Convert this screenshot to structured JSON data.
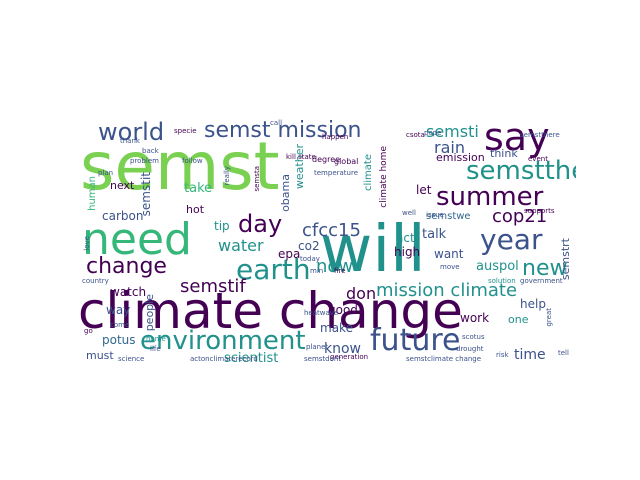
{
  "palette": {
    "purple": "#440154",
    "indigo": "#3b528b",
    "blue": "#31688e",
    "teal": "#21918c",
    "green": "#35b779",
    "lime": "#7ad151",
    "yellow": "#fde725"
  },
  "wordcloud": {
    "words": [
      {
        "text": "semst",
        "color": "lime"
      },
      {
        "text": "climate change",
        "color": "purple"
      },
      {
        "text": "will",
        "color": "teal"
      },
      {
        "text": "need",
        "color": "green"
      },
      {
        "text": "say",
        "color": "purple"
      },
      {
        "text": "earth",
        "color": "teal"
      },
      {
        "text": "future",
        "color": "indigo"
      },
      {
        "text": "environment",
        "color": "teal"
      },
      {
        "text": "summer",
        "color": "purple"
      },
      {
        "text": "semstthe",
        "color": "teal"
      },
      {
        "text": "world",
        "color": "indigo"
      },
      {
        "text": "semst mission",
        "color": "indigo"
      },
      {
        "text": "year",
        "color": "indigo"
      },
      {
        "text": "change",
        "color": "purple"
      },
      {
        "text": "day",
        "color": "purple"
      },
      {
        "text": "new",
        "color": "teal"
      },
      {
        "text": "mission climate",
        "color": "teal"
      },
      {
        "text": "semstif",
        "color": "purple"
      },
      {
        "text": "cfcc15",
        "color": "indigo"
      },
      {
        "text": "cop21",
        "color": "purple"
      },
      {
        "text": "water",
        "color": "teal"
      },
      {
        "text": "now",
        "color": "teal"
      },
      {
        "text": "semsti",
        "color": "teal"
      },
      {
        "text": "rain",
        "color": "indigo"
      },
      {
        "text": "don",
        "color": "purple"
      },
      {
        "text": "time",
        "color": "indigo"
      },
      {
        "text": "know",
        "color": "indigo"
      },
      {
        "text": "scientist",
        "color": "teal"
      },
      {
        "text": "auspol",
        "color": "teal"
      },
      {
        "text": "help",
        "color": "indigo"
      },
      {
        "text": "carbon",
        "color": "indigo"
      },
      {
        "text": "semstit",
        "color": "indigo"
      },
      {
        "text": "take",
        "color": "green"
      },
      {
        "text": "tip",
        "color": "teal"
      },
      {
        "text": "work",
        "color": "purple"
      },
      {
        "text": "want",
        "color": "indigo"
      },
      {
        "text": "watch",
        "color": "purple"
      },
      {
        "text": "emission",
        "color": "purple"
      },
      {
        "text": "way",
        "color": "indigo"
      },
      {
        "text": "potus",
        "color": "blue"
      },
      {
        "text": "must",
        "color": "indigo"
      },
      {
        "text": "next",
        "color": "purple"
      },
      {
        "text": "people",
        "color": "indigo"
      },
      {
        "text": "good",
        "color": "purple"
      },
      {
        "text": "make",
        "color": "indigo"
      },
      {
        "text": "co2",
        "color": "indigo"
      },
      {
        "text": "epa",
        "color": "purple"
      },
      {
        "text": "act",
        "color": "teal"
      },
      {
        "text": "talk",
        "color": "indigo"
      },
      {
        "text": "high",
        "color": "purple"
      },
      {
        "text": "let",
        "color": "purple"
      },
      {
        "text": "semstwe",
        "color": "blue"
      },
      {
        "text": "think",
        "color": "indigo"
      },
      {
        "text": "one",
        "color": "teal"
      },
      {
        "text": "semstrt",
        "color": "indigo"
      },
      {
        "text": "obama",
        "color": "indigo"
      },
      {
        "text": "weather",
        "color": "teal"
      },
      {
        "text": "hot",
        "color": "purple"
      },
      {
        "text": "human",
        "color": "green"
      },
      {
        "text": "climate home",
        "color": "purple"
      },
      {
        "text": "climate",
        "color": "teal"
      },
      {
        "text": "degree",
        "color": "purple"
      },
      {
        "text": "global",
        "color": "purple"
      },
      {
        "text": "kill state",
        "color": "purple"
      },
      {
        "text": "csota",
        "color": "purple"
      },
      {
        "text": "pope",
        "color": "indigo"
      },
      {
        "text": "happen",
        "color": "purple"
      },
      {
        "text": "event",
        "color": "purple"
      },
      {
        "text": "science",
        "color": "indigo"
      },
      {
        "text": "generation",
        "color": "purple"
      },
      {
        "text": "risk",
        "color": "indigo"
      },
      {
        "text": "plan",
        "color": "indigo"
      },
      {
        "text": "back",
        "color": "indigo"
      },
      {
        "text": "specie",
        "color": "purple"
      },
      {
        "text": "problem",
        "color": "indigo"
      },
      {
        "text": "thank",
        "color": "indigo"
      },
      {
        "text": "follow",
        "color": "indigo"
      },
      {
        "text": "really",
        "color": "indigo"
      },
      {
        "text": "temperature",
        "color": "indigo"
      },
      {
        "text": "solution",
        "color": "teal"
      },
      {
        "text": "country",
        "color": "indigo"
      },
      {
        "text": "home",
        "color": "teal"
      },
      {
        "text": "life",
        "color": "indigo"
      },
      {
        "text": "government",
        "color": "indigo"
      },
      {
        "text": "semstthere",
        "color": "indigo"
      },
      {
        "text": "drought",
        "color": "indigo"
      },
      {
        "text": "actonclimaterecord",
        "color": "indigo"
      },
      {
        "text": "supports",
        "color": "purple"
      },
      {
        "text": "today",
        "color": "indigo"
      },
      {
        "text": "issue",
        "color": "indigo"
      },
      {
        "text": "move",
        "color": "indigo"
      },
      {
        "text": "well",
        "color": "indigo"
      },
      {
        "text": "scotus",
        "color": "indigo"
      },
      {
        "text": "min",
        "color": "indigo"
      },
      {
        "text": "call",
        "color": "indigo"
      },
      {
        "text": "great",
        "color": "indigo"
      },
      {
        "text": "tell",
        "color": "indigo"
      },
      {
        "text": "love",
        "color": "indigo"
      },
      {
        "text": "semstclimate change",
        "color": "indigo"
      },
      {
        "text": "planet",
        "color": "indigo"
      },
      {
        "text": "come",
        "color": "indigo"
      },
      {
        "text": "semstdont",
        "color": "indigo"
      },
      {
        "text": "heatwave",
        "color": "indigo"
      },
      {
        "text": "go",
        "color": "purple"
      },
      {
        "text": "semsta",
        "color": "purple"
      },
      {
        "text": "fire",
        "color": "purple"
      }
    ]
  }
}
